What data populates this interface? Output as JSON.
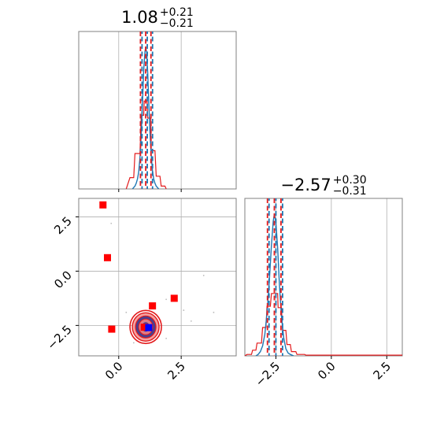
{
  "chart_data": {
    "type": "scatter",
    "variant": "corner-plot",
    "parameters": [
      {
        "median": "1.08",
        "plus": "+0.21",
        "minus": "−0.21"
      },
      {
        "median": "−2.57",
        "plus": "+0.30",
        "minus": "−0.31"
      }
    ],
    "param0": {
      "xlim": [
        -1.6,
        4.7
      ],
      "ticks": [
        0.0,
        2.5
      ],
      "tick_labels": [
        "0.0",
        "2.5"
      ],
      "quantile_lines": [
        0.87,
        1.08,
        1.29
      ]
    },
    "param1": {
      "xlim": [
        -3.9,
        3.2
      ],
      "ticks": [
        -2.5,
        0.0,
        2.5
      ],
      "tick_labels": [
        "−2.5",
        "0.0",
        "2.5"
      ],
      "quantile_lines": [
        -2.88,
        -2.57,
        -2.27
      ]
    },
    "hist_grid_x": [
      -0.5,
      0.0,
      0.5,
      1.0,
      1.5,
      2.0,
      2.5,
      3.0,
      3.5,
      4.0
    ],
    "hist_blue_0": [
      [
        0.55,
        0
      ],
      [
        0.6,
        0.01
      ],
      [
        0.65,
        0.02
      ],
      [
        0.7,
        0.04
      ],
      [
        0.75,
        0.07
      ],
      [
        0.8,
        0.12
      ],
      [
        0.85,
        0.22
      ],
      [
        0.9,
        0.38
      ],
      [
        0.95,
        0.6
      ],
      [
        1.0,
        0.84
      ],
      [
        1.05,
        0.97
      ],
      [
        1.08,
        1.0
      ],
      [
        1.12,
        0.96
      ],
      [
        1.16,
        0.82
      ],
      [
        1.2,
        0.62
      ],
      [
        1.25,
        0.4
      ],
      [
        1.3,
        0.24
      ],
      [
        1.35,
        0.13
      ],
      [
        1.4,
        0.07
      ],
      [
        1.45,
        0.04
      ],
      [
        1.5,
        0.02
      ],
      [
        1.55,
        0.01
      ],
      [
        1.6,
        0
      ]
    ],
    "hist_red_0": [
      [
        0.3,
        0
      ],
      [
        0.45,
        0.08
      ],
      [
        0.6,
        0.08
      ],
      [
        0.65,
        0.25
      ],
      [
        0.85,
        0.25
      ],
      [
        0.9,
        0.52
      ],
      [
        1.0,
        0.52
      ],
      [
        1.02,
        0.62
      ],
      [
        1.14,
        0.62
      ],
      [
        1.16,
        0.5
      ],
      [
        1.28,
        0.5
      ],
      [
        1.3,
        0.27
      ],
      [
        1.45,
        0.27
      ],
      [
        1.5,
        0.09
      ],
      [
        1.65,
        0.09
      ],
      [
        1.7,
        0.02
      ],
      [
        1.85,
        0.02
      ],
      [
        1.9,
        0
      ]
    ],
    "hist_blue_1": [
      [
        -3.4,
        0
      ],
      [
        -3.3,
        0.01
      ],
      [
        -3.2,
        0.03
      ],
      [
        -3.1,
        0.07
      ],
      [
        -3.0,
        0.15
      ],
      [
        -2.9,
        0.3
      ],
      [
        -2.8,
        0.52
      ],
      [
        -2.7,
        0.78
      ],
      [
        -2.62,
        0.95
      ],
      [
        -2.57,
        1.0
      ],
      [
        -2.5,
        0.94
      ],
      [
        -2.42,
        0.76
      ],
      [
        -2.34,
        0.5
      ],
      [
        -2.25,
        0.28
      ],
      [
        -2.15,
        0.13
      ],
      [
        -2.05,
        0.05
      ],
      [
        -1.95,
        0.02
      ],
      [
        -1.85,
        0.01
      ],
      [
        -1.7,
        0
      ]
    ],
    "hist_red_1": [
      [
        -3.9,
        0
      ],
      [
        -3.8,
        0.01
      ],
      [
        -3.6,
        0.01
      ],
      [
        -3.55,
        0.04
      ],
      [
        -3.4,
        0.04
      ],
      [
        -3.35,
        0.09
      ],
      [
        -3.15,
        0.09
      ],
      [
        -3.1,
        0.2
      ],
      [
        -2.95,
        0.2
      ],
      [
        -2.9,
        0.35
      ],
      [
        -2.75,
        0.35
      ],
      [
        -2.7,
        0.44
      ],
      [
        -2.42,
        0.44
      ],
      [
        -2.4,
        0.34
      ],
      [
        -2.25,
        0.34
      ],
      [
        -2.2,
        0.18
      ],
      [
        -2.05,
        0.18
      ],
      [
        -2.0,
        0.08
      ],
      [
        -1.85,
        0.08
      ],
      [
        -1.8,
        0.03
      ],
      [
        -1.6,
        0.03
      ],
      [
        -1.55,
        0.01
      ],
      [
        -1.2,
        0.01
      ],
      [
        -1.15,
        0.005
      ],
      [
        3.2,
        0.005
      ]
    ],
    "scatter_points": [
      {
        "x": -0.63,
        "y": 3.05,
        "color": "#ff0000"
      },
      {
        "x": -0.45,
        "y": 0.62,
        "color": "#ff0000"
      },
      {
        "x": -0.28,
        "y": -2.67,
        "color": "#ff0000"
      },
      {
        "x": 1.35,
        "y": -1.6,
        "color": "#ff0000"
      },
      {
        "x": 2.22,
        "y": -1.25,
        "color": "#ff0000"
      },
      {
        "x": 1.02,
        "y": -2.58,
        "color": "#ff0000"
      },
      {
        "x": 1.2,
        "y": -2.6,
        "color": "#0000ff"
      }
    ],
    "grid": true,
    "colors": {
      "blue": "#1f77b4",
      "red": "#e31a1c",
      "marker_red": "#ff0000",
      "marker_blue": "#0000ff",
      "contour_dark": "#4a3f8e",
      "grid": "#b0b0b0",
      "frame": "#808080"
    }
  }
}
